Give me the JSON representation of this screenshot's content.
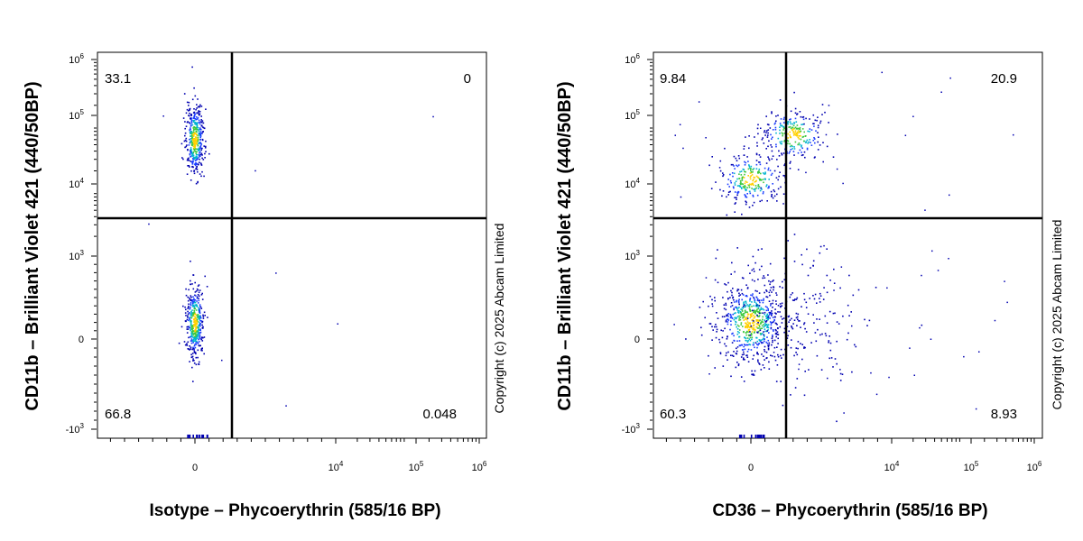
{
  "chart_data": [
    {
      "type": "scatter",
      "ylabel": "CD11b – Brilliant Violet 421  (440/50BP)",
      "xlabel": "Isotype – Phycoerythrin (585/16 BP)",
      "y_ticks": [
        "-10^3",
        "0",
        "10^3",
        "10^4",
        "10^5",
        "10^6"
      ],
      "x_ticks": [
        "0",
        "10^4",
        "10^5",
        "10^6"
      ],
      "quadrants": {
        "upper_left": "33.1",
        "upper_right": "0",
        "lower_left": "66.8",
        "lower_right": "0.048"
      },
      "copyright": "Copyright (c) 2025 Abcam Limited",
      "populations": [
        {
          "x": 0,
          "y": 200,
          "spread": "tight"
        },
        {
          "x": 0,
          "y": 60000,
          "spread": "tight"
        }
      ]
    },
    {
      "type": "scatter",
      "ylabel": "CD11b – Brilliant Violet 421  (440/50BP)",
      "xlabel": "CD36 – Phycoerythrin (585/16 BP)",
      "y_ticks": [
        "-10^3",
        "0",
        "10^3",
        "10^4",
        "10^5",
        "10^6"
      ],
      "x_ticks": [
        "0",
        "10^4",
        "10^5",
        "10^6"
      ],
      "quadrants": {
        "upper_left": "9.84",
        "upper_right": "20.9",
        "lower_left": "60.3",
        "lower_right": "8.93"
      },
      "copyright": "Copyright (c) 2025 Abcam Limited",
      "populations": [
        {
          "x": 0,
          "y": 200,
          "spread": "wide"
        },
        {
          "x": 0,
          "y": 15000,
          "spread": "medium"
        },
        {
          "x": 3000,
          "y": 70000,
          "spread": "medium"
        },
        {
          "x": 3000,
          "y": 300,
          "spread": "diffuse"
        }
      ]
    }
  ]
}
